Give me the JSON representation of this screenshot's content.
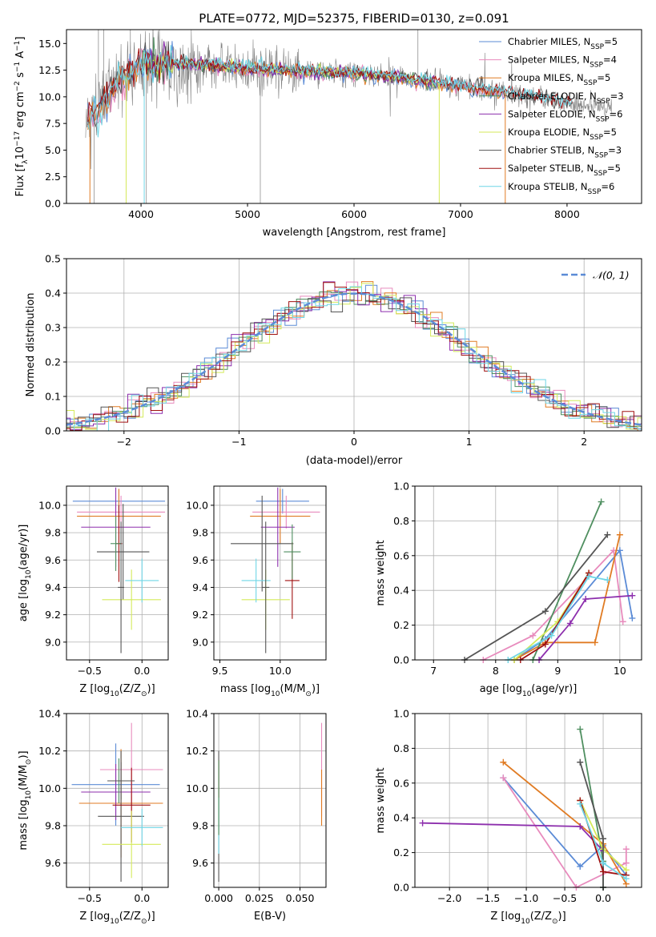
{
  "colors": {
    "chabrier_miles": "#5b8bd6",
    "salpeter_miles": "#e88bbd",
    "kroupa_miles": "#e07b23",
    "chabrier_elodie": "#4f8f60",
    "salpeter_elodie": "#8d2fad",
    "kroupa_elodie": "#d4ea5a",
    "chabrier_stelib": "#555555",
    "salpeter_stelib": "#a01010",
    "kroupa_stelib": "#6fd6e6",
    "data": "#808080",
    "normal": "#5b8bd6"
  },
  "chart_data": [
    {
      "id": "spectrum",
      "type": "line",
      "title": "PLATE=0772, MJD=52375, FIBERID=0130, z=0.091",
      "xlabel": "wavelength [Angstrom, rest frame]",
      "ylabel": "Flux [f",
      "ylabel_sub": "λ",
      "ylabel_mid": "10",
      "ylabel_sup": "−17",
      "ylabel_tail": " erg cm",
      "ylabel_sup2": "−2",
      "ylabel_tail2": " s",
      "ylabel_sup3": "−1",
      "ylabel_tail3": " A",
      "ylabel_sup4": "−1",
      "ylabel_end": "]",
      "xlim": [
        3300,
        8700
      ],
      "ylim": [
        0,
        16.3
      ],
      "xticks": [
        "4000",
        "5000",
        "6000",
        "7000",
        "8000"
      ],
      "yticks": [
        "0.0",
        "2.5",
        "5.0",
        "7.5",
        "10.0",
        "12.5",
        "15.0"
      ],
      "legend_position": "right",
      "legend": [
        {
          "key": "chabrier_miles",
          "label": "Chabrier MILES, N",
          "sub": "SSP",
          "tail": "=5"
        },
        {
          "key": "salpeter_miles",
          "label": "Salpeter MILES, N",
          "sub": "SSP",
          "tail": "=4"
        },
        {
          "key": "kroupa_miles",
          "label": "Kroupa MILES, N",
          "sub": "SSP",
          "tail": "=5"
        },
        {
          "key": "chabrier_elodie",
          "label": "Chabrier ELODIE, N",
          "sub": "SSP",
          "tail": "=3"
        },
        {
          "key": "salpeter_elodie",
          "label": "Salpeter ELODIE, N",
          "sub": "SSP",
          "tail": "=6"
        },
        {
          "key": "kroupa_elodie",
          "label": "Kroupa ELODIE, N",
          "sub": "SSP",
          "tail": "=5"
        },
        {
          "key": "chabrier_stelib",
          "label": "Chabrier STELIB, N",
          "sub": "SSP",
          "tail": "=3"
        },
        {
          "key": "salpeter_stelib",
          "label": "Salpeter STELIB, N",
          "sub": "SSP",
          "tail": "=5"
        },
        {
          "key": "kroupa_stelib",
          "label": "Kroupa STELIB, N",
          "sub": "SSP",
          "tail": "=6"
        }
      ],
      "continuum": {
        "x": [
          3500,
          3600,
          3800,
          4000,
          4200,
          4500,
          5000,
          5500,
          6000,
          6500,
          7000,
          7500,
          8000,
          8400
        ],
        "y": [
          7.8,
          8.8,
          11.5,
          13.0,
          13.2,
          13.0,
          12.7,
          12.4,
          12.2,
          11.7,
          11.0,
          10.3,
          9.4,
          9.0
        ]
      },
      "model_ranges": {
        "miles": [
          3500,
          7420
        ],
        "elodie": [
          4000,
          6800
        ],
        "stelib": [
          3500,
          8050
        ]
      }
    },
    {
      "id": "residuals",
      "type": "histogram",
      "xlabel": "(data-model)/error",
      "ylabel": "Normed distribution",
      "xlim": [
        -2.5,
        2.5
      ],
      "ylim": [
        0,
        0.5
      ],
      "xticks": [
        "−2",
        "−1",
        "0",
        "1",
        "2"
      ],
      "yticks": [
        "0.0",
        "0.1",
        "0.2",
        "0.3",
        "0.4",
        "0.5"
      ],
      "grid": true,
      "bin_width": 0.1,
      "legend_position": "top-right",
      "legend": [
        {
          "key": "normal",
          "label": "𝒩(0, 1)"
        }
      ]
    },
    {
      "id": "age_vs_z",
      "type": "errorbar",
      "xlabel": "Z [log",
      "xlabel_sub": "10",
      "xlabel_tail": "(Z/Z",
      "xlabel_sub2": "⊙",
      "xlabel_end": ")]",
      "ylabel": "age  [log",
      "ylabel_sub": "10",
      "ylabel_tail": "(age/yr)]",
      "xlim": [
        -0.72,
        0.25
      ],
      "ylim": [
        8.87,
        10.14
      ],
      "xticks": [
        "−0.5",
        "0.0"
      ],
      "yticks": [
        "9.0",
        "9.2",
        "9.4",
        "9.6",
        "9.8",
        "10.0"
      ],
      "grid": true,
      "points": [
        {
          "key": "chabrier_miles",
          "x": -0.22,
          "xerr": 0.44,
          "y": 10.03,
          "yerr": 0.09
        },
        {
          "key": "salpeter_miles",
          "x": -0.2,
          "xerr": 0.42,
          "y": 9.95,
          "yerr": 0.12
        },
        {
          "key": "kroupa_miles",
          "x": -0.22,
          "xerr": 0.4,
          "y": 9.92,
          "yerr": 0.2
        },
        {
          "key": "salpeter_elodie",
          "x": -0.25,
          "xerr": 0.33,
          "y": 9.84,
          "yerr": 0.29
        },
        {
          "key": "chabrier_stelib",
          "x": -0.18,
          "xerr": 0.25,
          "y": 9.66,
          "yerr": 0.35
        },
        {
          "key": "salpeter_stelib",
          "x": -0.22,
          "xerr": 0.03,
          "y": 9.72,
          "yerr": 0.28
        },
        {
          "key": "kroupa_elodie",
          "x": -0.1,
          "xerr": 0.28,
          "y": 9.31,
          "yerr": 0.22
        },
        {
          "key": "kroupa_stelib",
          "x": 0.0,
          "xerr": 0.16,
          "y": 9.45,
          "yerr": 0.16
        },
        {
          "key": "chabrier_elodie",
          "x": -0.25,
          "xerr": 0.05,
          "y": 9.72,
          "yerr": 0.2
        },
        {
          "key": "chabrier_stelib",
          "x": -0.2,
          "xerr": 0.03,
          "y": 9.4,
          "yerr": 0.48
        }
      ]
    },
    {
      "id": "age_vs_mass",
      "type": "errorbar",
      "xlabel": "mass [log",
      "xlabel_sub": "10",
      "xlabel_tail": "(M/M",
      "xlabel_sub2": "⊙",
      "xlabel_end": ")]",
      "xlim": [
        9.45,
        10.38
      ],
      "ylim": [
        8.87,
        10.14
      ],
      "xticks": [
        "9.5",
        "10.0"
      ],
      "yticks": [
        "9.0",
        "9.2",
        "9.4",
        "9.6",
        "9.8",
        "10.0"
      ],
      "grid": true,
      "points": [
        {
          "key": "chabrier_miles",
          "x": 10.02,
          "xerr": 0.22,
          "y": 10.03,
          "yerr": 0.09
        },
        {
          "key": "salpeter_miles",
          "x": 10.05,
          "xerr": 0.28,
          "y": 9.95,
          "yerr": 0.12
        },
        {
          "key": "kroupa_miles",
          "x": 10.0,
          "xerr": 0.25,
          "y": 9.92,
          "yerr": 0.2
        },
        {
          "key": "salpeter_elodie",
          "x": 9.98,
          "xerr": 0.14,
          "y": 9.84,
          "yerr": 0.29
        },
        {
          "key": "chabrier_stelib",
          "x": 9.85,
          "xerr": 0.26,
          "y": 9.72,
          "yerr": 0.35
        },
        {
          "key": "salpeter_stelib",
          "x": 10.1,
          "xerr": 0.06,
          "y": 9.45,
          "yerr": 0.28
        },
        {
          "key": "kroupa_elodie",
          "x": 9.88,
          "xerr": 0.2,
          "y": 9.31,
          "yerr": 0.22
        },
        {
          "key": "kroupa_stelib",
          "x": 9.8,
          "xerr": 0.12,
          "y": 9.45,
          "yerr": 0.16
        },
        {
          "key": "chabrier_elodie",
          "x": 10.1,
          "xerr": 0.07,
          "y": 9.66,
          "yerr": 0.2
        },
        {
          "key": "chabrier_stelib",
          "x": 9.88,
          "xerr": 0.03,
          "y": 9.4,
          "yerr": 0.48
        }
      ]
    },
    {
      "id": "weight_vs_age",
      "type": "line",
      "xlabel": "age  [log",
      "xlabel_sub": "10",
      "xlabel_tail": "(age/yr)]",
      "ylabel": "mass weight",
      "xlim": [
        6.7,
        10.35
      ],
      "ylim": [
        0,
        1.0
      ],
      "xticks": [
        "7",
        "8",
        "9",
        "10"
      ],
      "yticks": [
        "0.0",
        "0.2",
        "0.4",
        "0.6",
        "0.8",
        "1.0"
      ],
      "grid": true,
      "series": [
        {
          "key": "chabrier_miles",
          "x": [
            8.3,
            8.8,
            10.0,
            10.2
          ],
          "y": [
            0.0,
            0.12,
            0.63,
            0.24
          ]
        },
        {
          "key": "salpeter_miles",
          "x": [
            7.8,
            8.6,
            9.9,
            10.05
          ],
          "y": [
            0.0,
            0.14,
            0.63,
            0.22
          ]
        },
        {
          "key": "kroupa_miles",
          "x": [
            8.3,
            8.8,
            9.6,
            10.0
          ],
          "y": [
            0.0,
            0.1,
            0.1,
            0.72
          ]
        },
        {
          "key": "chabrier_elodie",
          "x": [
            8.6,
            9.7
          ],
          "y": [
            0.0,
            0.91
          ]
        },
        {
          "key": "salpeter_elodie",
          "x": [
            8.7,
            9.2,
            9.45,
            10.2
          ],
          "y": [
            0.0,
            0.21,
            0.35,
            0.37
          ]
        },
        {
          "key": "kroupa_elodie",
          "x": [
            8.3,
            9.0,
            9.5
          ],
          "y": [
            0.0,
            0.22,
            0.5
          ]
        },
        {
          "key": "chabrier_stelib",
          "x": [
            7.5,
            8.8,
            9.8
          ],
          "y": [
            0.0,
            0.28,
            0.72
          ]
        },
        {
          "key": "salpeter_stelib",
          "x": [
            8.4,
            8.8,
            9.5
          ],
          "y": [
            0.0,
            0.09,
            0.5
          ]
        },
        {
          "key": "kroupa_stelib",
          "x": [
            8.2,
            8.9,
            9.5,
            9.8
          ],
          "y": [
            0.0,
            0.14,
            0.48,
            0.46
          ]
        }
      ]
    },
    {
      "id": "mass_vs_z",
      "type": "errorbar",
      "xlabel": "Z [log",
      "xlabel_sub": "10",
      "xlabel_tail": "(Z/Z",
      "xlabel_sub2": "⊙",
      "xlabel_end": ")]",
      "ylabel": "mass [log",
      "ylabel_sub": "10",
      "ylabel_tail": "(M/M",
      "ylabel_sub2": "⊙",
      "ylabel_end": ")]",
      "xlim": [
        -0.72,
        0.25
      ],
      "ylim": [
        9.47,
        10.4
      ],
      "xticks": [
        "−0.5",
        "0.0"
      ],
      "yticks": [
        "9.6",
        "9.8",
        "10.0",
        "10.2",
        "10.4"
      ],
      "grid": true,
      "points": [
        {
          "key": "chabrier_miles",
          "x": -0.25,
          "xerr": 0.42,
          "y": 10.02,
          "yerr": 0.22
        },
        {
          "key": "salpeter_miles",
          "x": -0.1,
          "xerr": 0.3,
          "y": 10.1,
          "yerr": 0.25
        },
        {
          "key": "kroupa_miles",
          "x": -0.2,
          "xerr": 0.4,
          "y": 9.92,
          "yerr": 0.29
        },
        {
          "key": "salpeter_elodie",
          "x": -0.25,
          "xerr": 0.33,
          "y": 9.98,
          "yerr": 0.15
        },
        {
          "key": "chabrier_stelib",
          "x": -0.2,
          "xerr": 0.22,
          "y": 9.85,
          "yerr": 0.35
        },
        {
          "key": "salpeter_stelib",
          "x": -0.1,
          "xerr": 0.18,
          "y": 9.91,
          "yerr": 0.2
        },
        {
          "key": "kroupa_elodie",
          "x": -0.1,
          "xerr": 0.28,
          "y": 9.7,
          "yerr": 0.18
        },
        {
          "key": "kroupa_stelib",
          "x": 0.0,
          "xerr": 0.2,
          "y": 9.79,
          "yerr": 0.1
        },
        {
          "key": "chabrier_elodie",
          "x": -0.22,
          "xerr": 0.08,
          "y": 10.04,
          "yerr": 0.12
        },
        {
          "key": "chabrier_stelib",
          "x": -0.2,
          "xerr": 0.13,
          "y": 10.04,
          "yerr": 0.1
        }
      ]
    },
    {
      "id": "mass_vs_ebv",
      "type": "errorbar",
      "xlabel": "E(B-V)",
      "xlim": [
        -0.003,
        0.066
      ],
      "ylim": [
        9.47,
        10.4
      ],
      "xticks": [
        "0.000",
        "0.025",
        "0.050"
      ],
      "yticks": [
        "9.6",
        "9.8",
        "10.0",
        "10.2",
        "10.4"
      ],
      "grid": true,
      "points": [
        {
          "key": "chabrier_stelib",
          "x": 0.0,
          "xerr": 0.0,
          "y": 9.85,
          "yerr": 0.35
        },
        {
          "key": "salpeter_stelib",
          "x": 0.0,
          "xerr": 0.0,
          "y": 10.05,
          "yerr": 0.1
        },
        {
          "key": "kroupa_stelib",
          "x": 0.0,
          "xerr": 0.0,
          "y": 9.8,
          "yerr": 0.15
        },
        {
          "key": "chabrier_elodie",
          "x": 0.0,
          "xerr": 0.0,
          "y": 9.95,
          "yerr": 0.2
        },
        {
          "key": "salpeter_miles",
          "x": 0.0633,
          "xerr": 0.0,
          "y": 10.1,
          "yerr": 0.25
        },
        {
          "key": "kroupa_miles",
          "x": 0.0633,
          "xerr": 0.0,
          "y": 9.95,
          "yerr": 0.15
        }
      ]
    },
    {
      "id": "weight_vs_z",
      "type": "line",
      "xlabel": "Z [log",
      "xlabel_sub": "10",
      "xlabel_tail": "(Z/Z",
      "xlabel_sub2": "⊙",
      "xlabel_end": ")]",
      "ylabel": "mass weight",
      "xlim": [
        -2.45,
        0.5
      ],
      "ylim": [
        0,
        1.0
      ],
      "xticks": [
        "−2.0",
        "−1.5",
        "−1.0",
        "−0.5",
        "0.0"
      ],
      "yticks": [
        "0.0",
        "0.2",
        "0.4",
        "0.6",
        "0.8",
        "1.0"
      ],
      "grid": true,
      "series": [
        {
          "key": "chabrier_miles",
          "x": [
            -1.3,
            -0.3,
            0.0,
            0.3
          ],
          "y": [
            0.63,
            0.12,
            0.24,
            0.07
          ]
        },
        {
          "key": "salpeter_miles",
          "x": [
            -1.3,
            -0.35,
            0.3,
            0.3
          ],
          "y": [
            0.63,
            0.0,
            0.14,
            0.22
          ]
        },
        {
          "key": "kroupa_miles",
          "x": [
            -1.3,
            0.0,
            0.3
          ],
          "y": [
            0.72,
            0.25,
            0.02
          ]
        },
        {
          "key": "chabrier_elodie",
          "x": [
            -0.3,
            0.0,
            0.0
          ],
          "y": [
            0.91,
            0.15,
            0.0
          ]
        },
        {
          "key": "salpeter_elodie",
          "x": [
            -2.35,
            -0.3,
            0.0
          ],
          "y": [
            0.37,
            0.35,
            0.21
          ]
        },
        {
          "key": "kroupa_elodie",
          "x": [
            -0.3,
            0.0,
            0.3
          ],
          "y": [
            0.5,
            0.22,
            0.1
          ]
        },
        {
          "key": "chabrier_stelib",
          "x": [
            -0.3,
            0.0,
            0.0
          ],
          "y": [
            0.72,
            0.28,
            0.0
          ]
        },
        {
          "key": "salpeter_stelib",
          "x": [
            -0.3,
            0.0,
            0.3
          ],
          "y": [
            0.5,
            0.09,
            0.07
          ]
        },
        {
          "key": "kroupa_stelib",
          "x": [
            -0.3,
            0.0,
            0.3
          ],
          "y": [
            0.48,
            0.14,
            0.05
          ]
        }
      ]
    }
  ]
}
